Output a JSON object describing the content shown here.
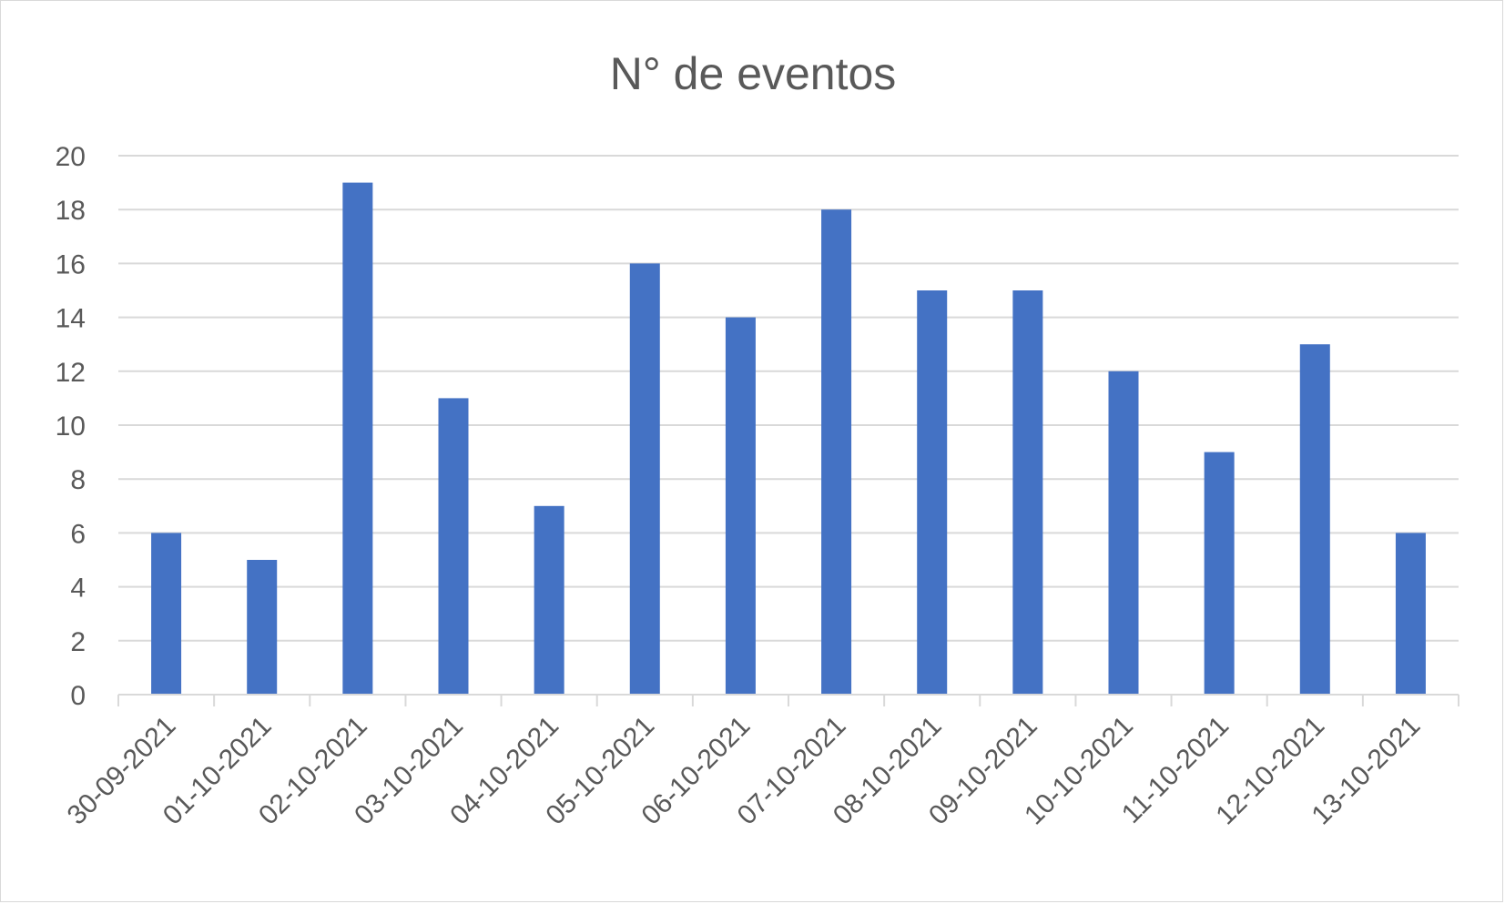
{
  "chart_data": {
    "type": "bar",
    "title": "N° de eventos",
    "xlabel": "",
    "ylabel": "",
    "categories": [
      "30-09-2021",
      "01-10-2021",
      "02-10-2021",
      "03-10-2021",
      "04-10-2021",
      "05-10-2021",
      "06-10-2021",
      "07-10-2021",
      "08-10-2021",
      "09-10-2021",
      "10-10-2021",
      "11-10-2021",
      "12-10-2021",
      "13-10-2021"
    ],
    "values": [
      6,
      5,
      19,
      11,
      7,
      16,
      14,
      18,
      15,
      15,
      12,
      9,
      13,
      6
    ],
    "ylim": [
      0,
      20
    ],
    "yticks": [
      0,
      2,
      4,
      6,
      8,
      10,
      12,
      14,
      16,
      18,
      20
    ],
    "grid": true,
    "legend": "none",
    "colors": {
      "bar": "#4472c4",
      "grid": "#d9d9d9",
      "text": "#595959"
    }
  }
}
